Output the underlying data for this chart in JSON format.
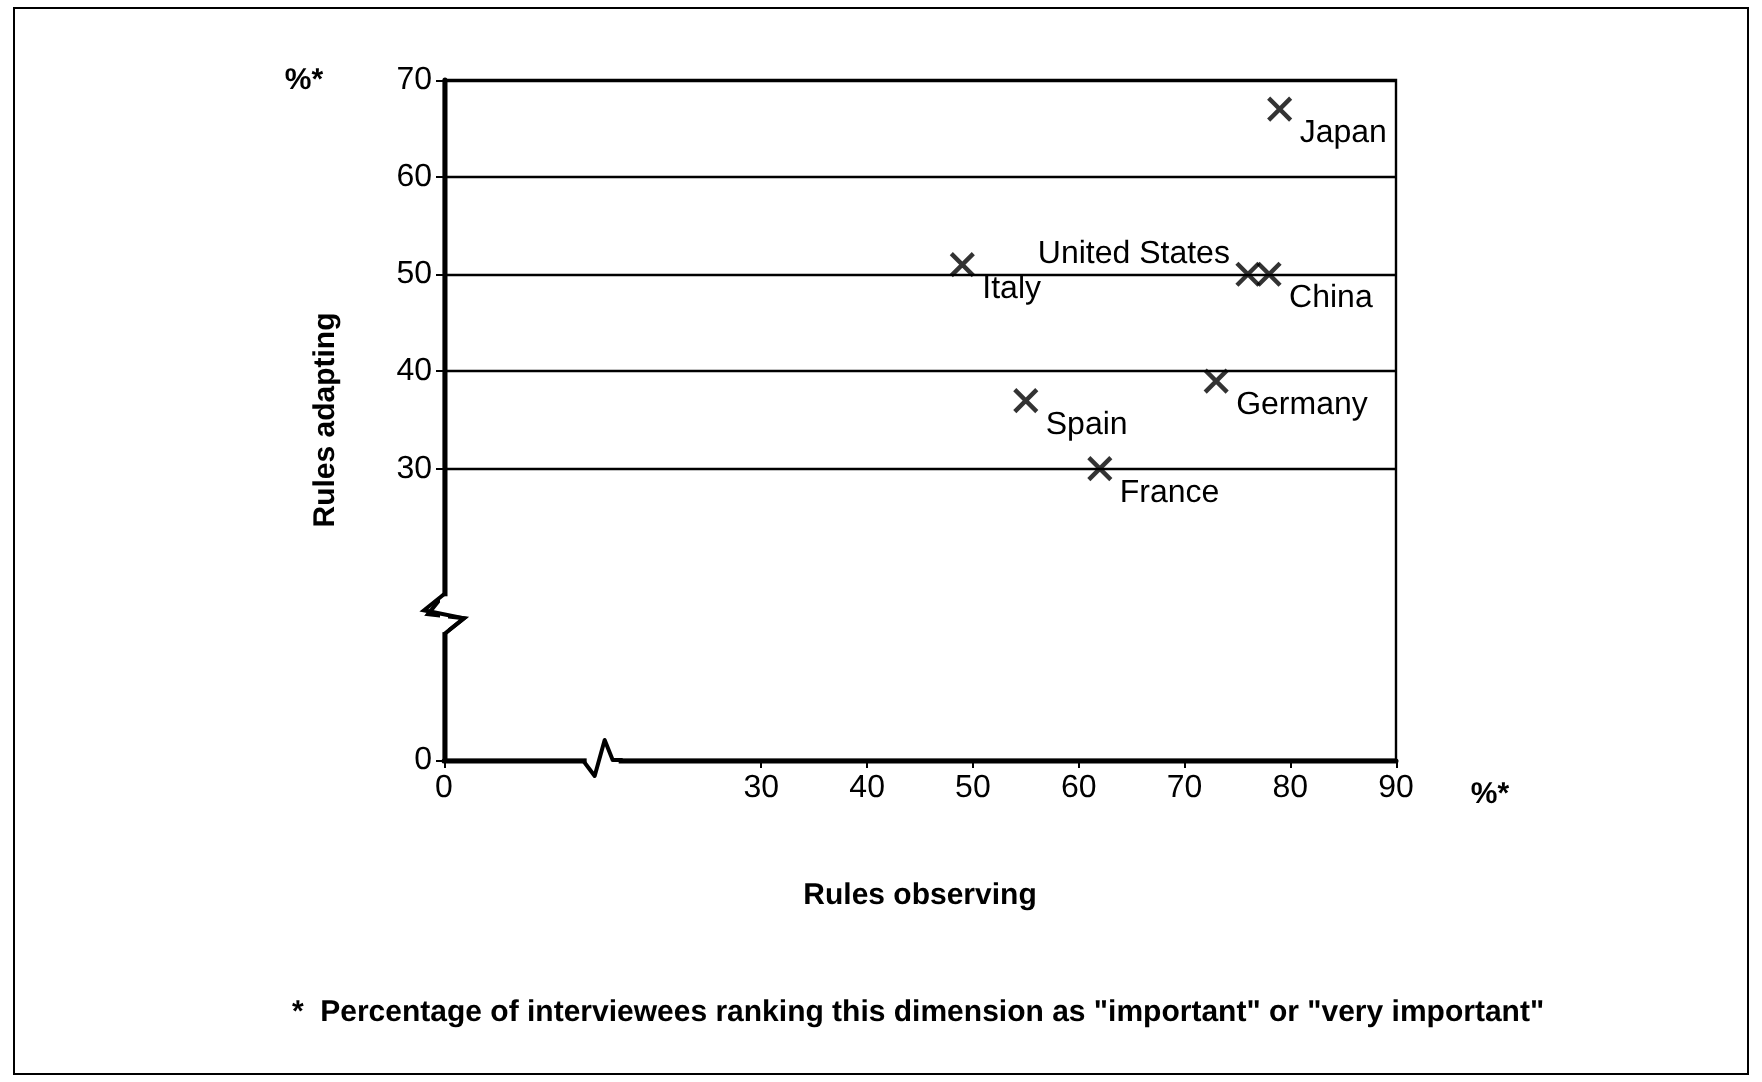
{
  "chart_data": {
    "type": "scatter",
    "xlabel": "Rules observing",
    "ylabel": "Rules adapting",
    "x": [
      79,
      76,
      78,
      49,
      73,
      55,
      62
    ],
    "values": [
      67,
      50,
      50,
      51,
      39,
      37,
      30
    ],
    "color": "#000000",
    "marker": "cross",
    "grid": "y",
    "xlim": [
      0,
      90
    ],
    "xticks": [
      0,
      30,
      40,
      50,
      60,
      70,
      80,
      90
    ],
    "ylim": [
      0,
      70
    ],
    "yticks": [
      0,
      30,
      40,
      50,
      60,
      70
    ],
    "annotations": [
      "%*",
      "%*",
      "*  Percentage of interviewees ranking this dimension as \"important\" or \"very important\"",
      {
        "text": "Japan",
        "x": 79,
        "y": 67
      },
      {
        "text": "United States",
        "x": 76,
        "y": 50
      },
      {
        "text": "China",
        "x": 78,
        "y": 50
      },
      {
        "text": "Italy",
        "x": 49,
        "y": 51
      },
      {
        "text": "Germany",
        "x": 73,
        "y": 39
      },
      {
        "text": "Spain",
        "x": 55,
        "y": 37
      },
      {
        "text": "France",
        "x": 62,
        "y": 30
      }
    ]
  }
}
